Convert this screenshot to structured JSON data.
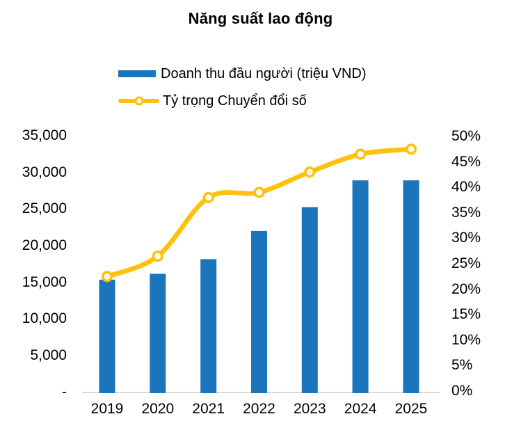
{
  "chart": {
    "title": "Năng suất lao động",
    "legend": {
      "bar_label": "Doanh thu đầu người (triệu VND)",
      "line_label": "Tỷ trọng Chuyển đổi số"
    }
  },
  "chart_data": {
    "type": "bar+line-combo",
    "title": "Năng suất lao động",
    "categories": [
      "2019",
      "2020",
      "2021",
      "2022",
      "2023",
      "2024",
      "2025"
    ],
    "series": [
      {
        "name": "Doanh thu đầu người (triệu VND)",
        "type": "bar",
        "axis": "left",
        "color": "#1b75bc",
        "values": [
          15350,
          16150,
          18150,
          22000,
          25250,
          28900,
          28900
        ]
      },
      {
        "name": "Tỷ trọng Chuyển đổi số",
        "type": "line",
        "axis": "right",
        "color": "#ffc10e",
        "marker": "circle-white-fill",
        "values_percent": [
          22.5,
          26.5,
          38,
          39,
          43,
          46.5,
          47.5
        ]
      }
    ],
    "left_axis": {
      "min": 0,
      "max": 35000,
      "step": 5000,
      "tick_labels": [
        "35,000",
        "30,000",
        "25,000",
        "20,000",
        "15,000",
        "10,000",
        "5,000",
        "-"
      ]
    },
    "right_axis": {
      "min": 0,
      "max": 50,
      "step": 5,
      "tick_labels": [
        "50%",
        "45%",
        "40%",
        "35%",
        "30%",
        "25%",
        "20%",
        "15%",
        "10%",
        "5%",
        "0%"
      ]
    },
    "grid": false,
    "legend_position": "top-left-stacked",
    "axis_line_color": "#d9d9d9",
    "background": "#ffffff",
    "text_color": "#000000"
  }
}
